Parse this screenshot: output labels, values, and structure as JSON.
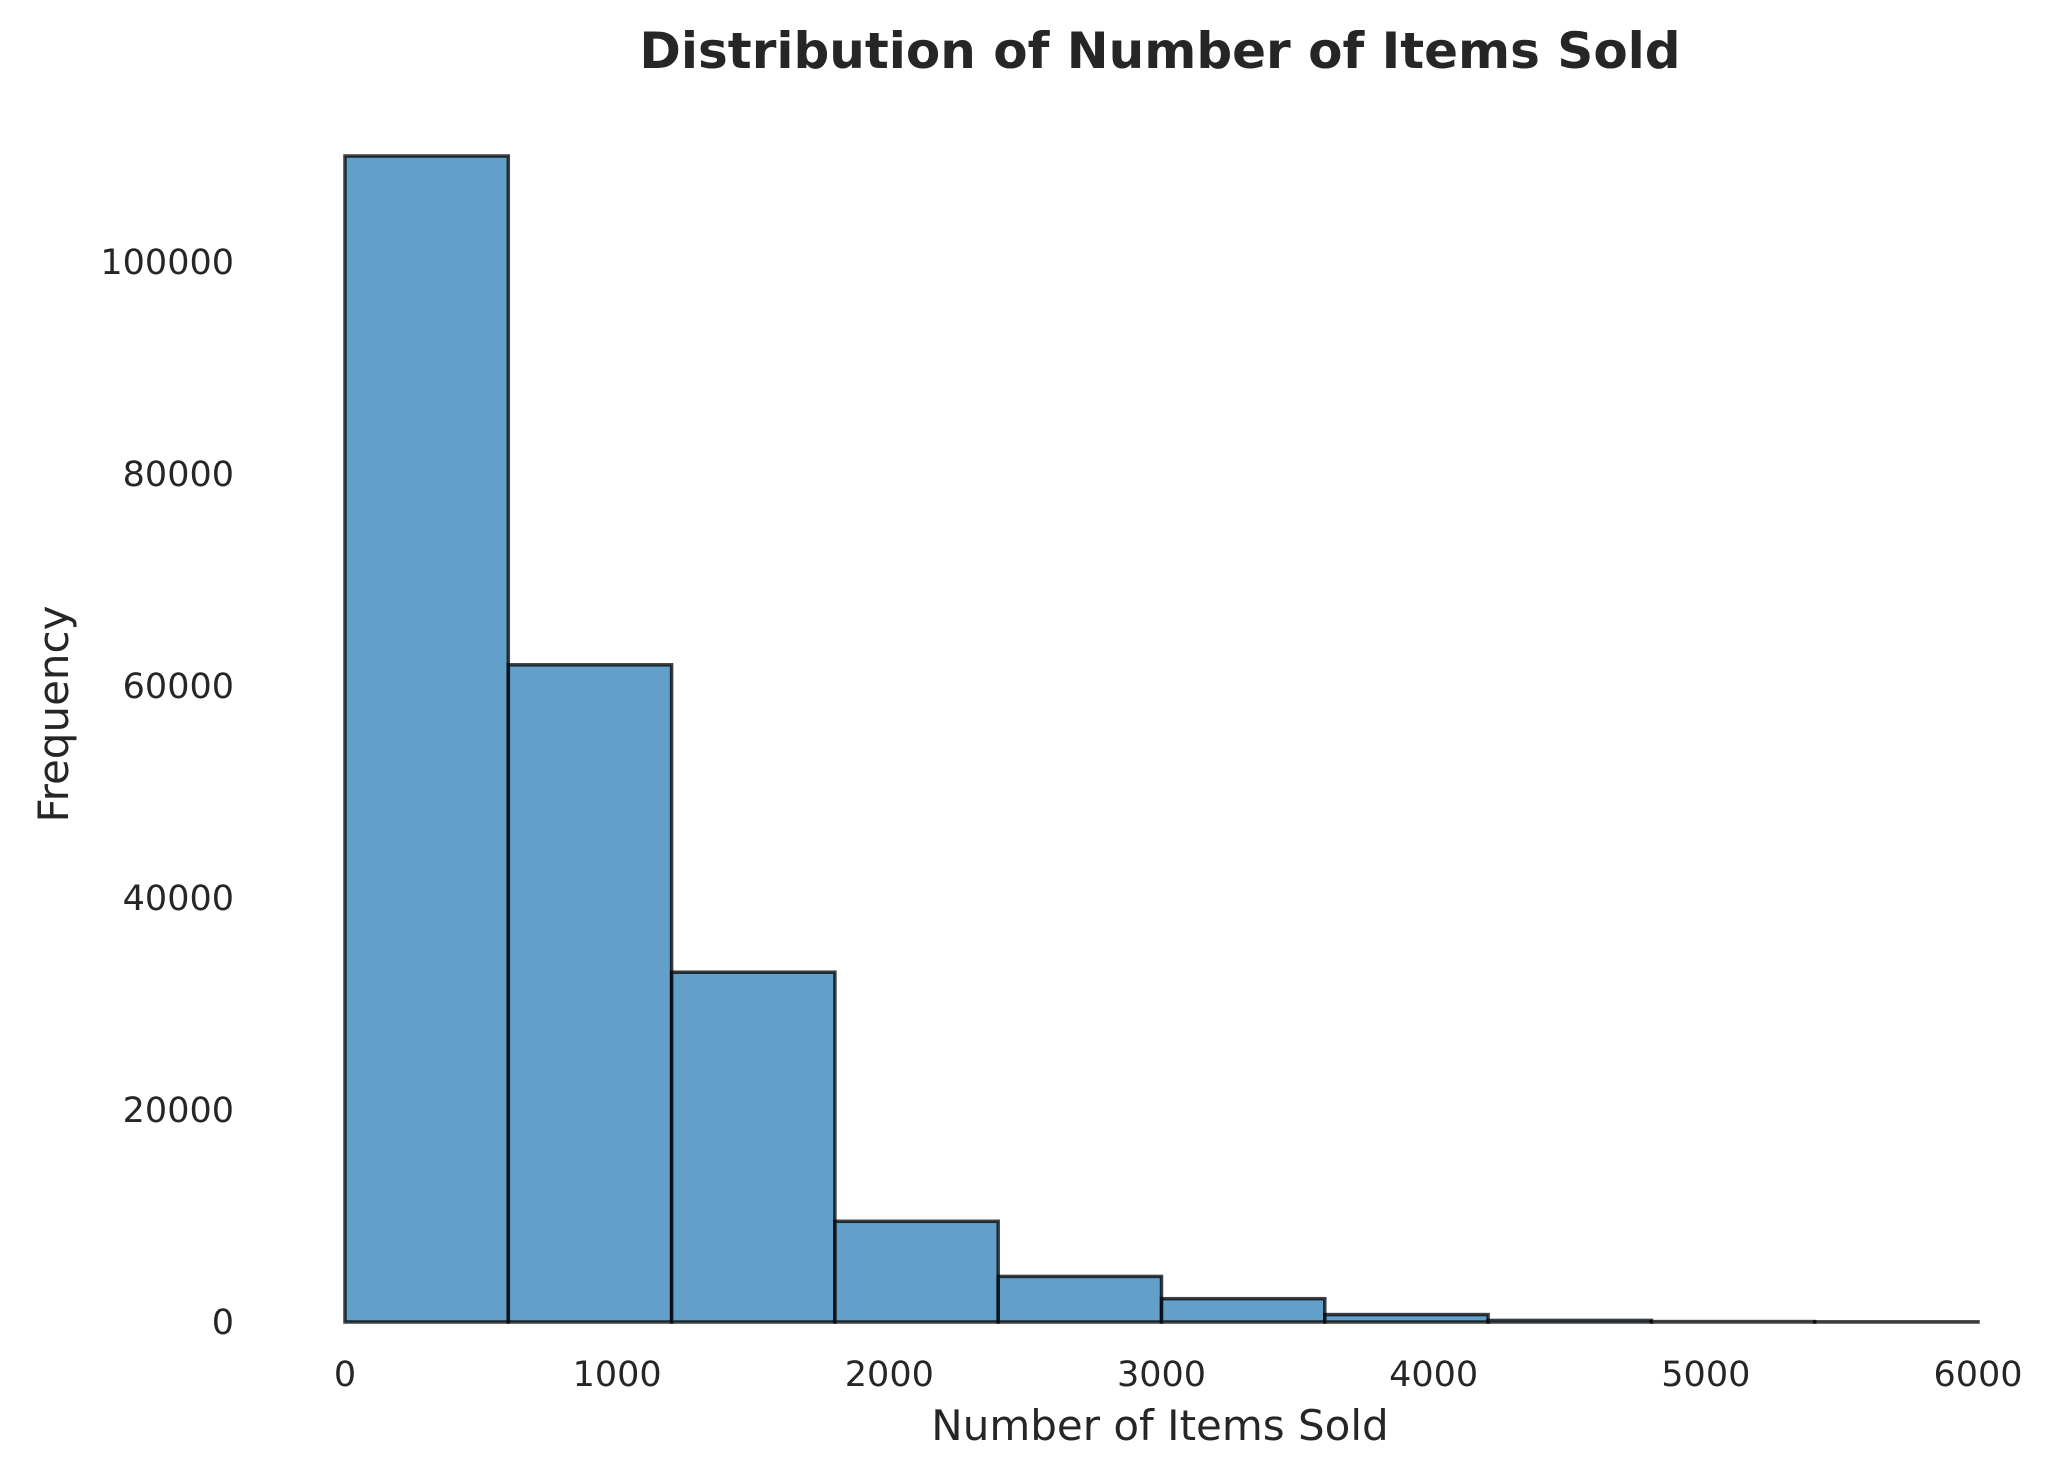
{
  "chart_data": {
    "type": "bar",
    "subtype": "histogram",
    "title": "Distribution of Number of Items Sold",
    "xlabel": "Number of Items Sold",
    "ylabel": "Frequency",
    "xlim": [
      0,
      6000
    ],
    "ylim": [
      0,
      110000
    ],
    "x_ticks": [
      0,
      1000,
      2000,
      3000,
      4000,
      5000,
      6000
    ],
    "y_ticks": [
      0,
      20000,
      40000,
      60000,
      80000,
      100000
    ],
    "grid": false,
    "bin_edges": [
      0,
      600,
      1200,
      1800,
      2400,
      3000,
      3600,
      4200,
      4800,
      5400,
      6000
    ],
    "bins": [
      {
        "x_start": 0,
        "x_end": 600,
        "value": 110000
      },
      {
        "x_start": 600,
        "x_end": 1200,
        "value": 62000
      },
      {
        "x_start": 1200,
        "x_end": 1800,
        "value": 33000
      },
      {
        "x_start": 1800,
        "x_end": 2400,
        "value": 9500
      },
      {
        "x_start": 2400,
        "x_end": 3000,
        "value": 4300
      },
      {
        "x_start": 3000,
        "x_end": 3600,
        "value": 2200
      },
      {
        "x_start": 3600,
        "x_end": 4200,
        "value": 700
      },
      {
        "x_start": 4200,
        "x_end": 4800,
        "value": 150
      },
      {
        "x_start": 4800,
        "x_end": 5400,
        "value": 40
      },
      {
        "x_start": 5400,
        "x_end": 6000,
        "value": 15
      }
    ],
    "colors": {
      "bar_fill": "#1f77b4",
      "bar_fill_opacity": 0.7,
      "bar_edge": "#000000",
      "text": "#262626",
      "background": "#ffffff"
    }
  }
}
